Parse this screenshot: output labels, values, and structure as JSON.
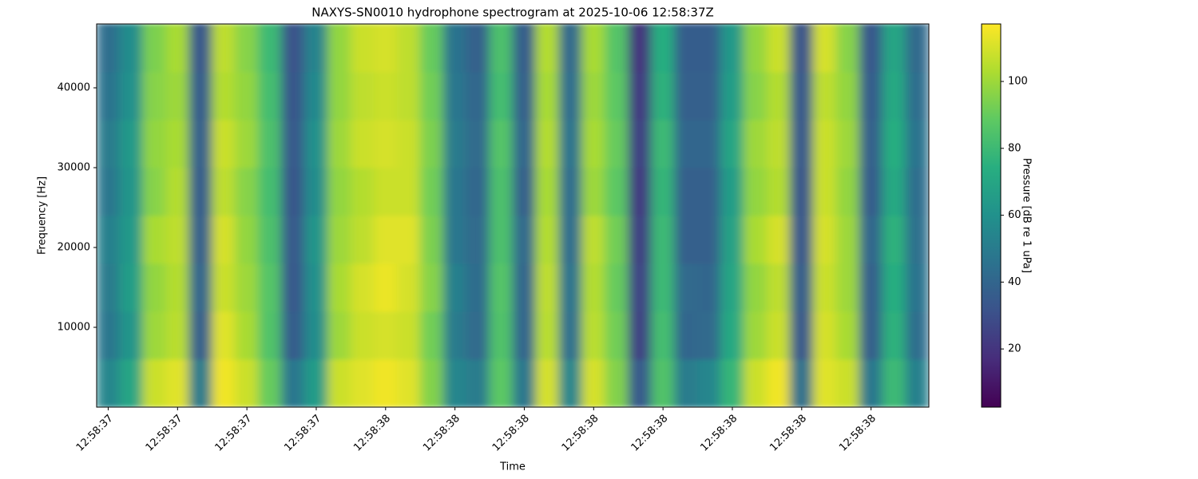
{
  "chart_data": {
    "type": "heatmap",
    "title": "NAXYS-SN0010 hydrophone spectrogram at 2025-10-06 12:58:37Z",
    "xlabel": "Time",
    "ylabel": "Frequency [Hz]",
    "categories": [
      "12:58:37",
      null,
      null,
      "12:58:37",
      null,
      null,
      "12:58:37",
      null,
      null,
      "12:58:37",
      null,
      null,
      "12:58:38",
      null,
      null,
      "12:58:38",
      null,
      null,
      "12:58:38",
      null,
      null,
      "12:58:38",
      null,
      null,
      "12:58:38",
      null,
      null,
      "12:58:38",
      null,
      null,
      "12:58:38",
      null,
      null,
      "12:58:38",
      null,
      null
    ],
    "yedges": [
      0,
      6000,
      12000,
      18000,
      24000,
      30000,
      36000,
      42000,
      48000
    ],
    "ylim": [
      0,
      48000
    ],
    "yticks": [
      10000,
      20000,
      30000,
      40000
    ],
    "colormap": "viridis",
    "colorbar": {
      "label": "Pressure [dB re 1 uPa]",
      "lim": [
        2.6,
        117.2
      ],
      "ticks": [
        20,
        40,
        60,
        80,
        100
      ]
    },
    "z": [
      [
        55,
        70,
        108,
        112,
        50,
        115,
        108,
        90,
        48,
        65,
        108,
        112,
        115,
        112,
        95,
        55,
        50,
        88,
        48,
        110,
        55,
        110,
        95,
        35,
        85,
        50,
        55,
        78,
        108,
        115,
        45,
        112,
        108,
        48,
        80,
        52
      ],
      [
        48,
        62,
        100,
        105,
        38,
        112,
        102,
        85,
        36,
        58,
        100,
        108,
        110,
        108,
        92,
        50,
        42,
        85,
        40,
        105,
        45,
        105,
        92,
        25,
        82,
        40,
        42,
        72,
        100,
        108,
        35,
        110,
        102,
        38,
        76,
        44
      ],
      [
        50,
        66,
        98,
        104,
        40,
        108,
        100,
        86,
        34,
        60,
        102,
        110,
        114,
        110,
        96,
        52,
        43,
        86,
        40,
        106,
        46,
        104,
        90,
        26,
        80,
        42,
        40,
        70,
        98,
        106,
        36,
        108,
        100,
        38,
        74,
        46
      ],
      [
        52,
        64,
        102,
        106,
        38,
        110,
        98,
        84,
        35,
        62,
        100,
        106,
        112,
        112,
        94,
        48,
        42,
        84,
        42,
        104,
        44,
        106,
        92,
        24,
        80,
        38,
        38,
        68,
        102,
        110,
        34,
        110,
        100,
        40,
        76,
        45
      ],
      [
        48,
        62,
        96,
        104,
        36,
        106,
        96,
        82,
        33,
        58,
        98,
        104,
        108,
        108,
        92,
        48,
        40,
        84,
        38,
        102,
        44,
        100,
        88,
        22,
        78,
        38,
        38,
        66,
        98,
        104,
        33,
        108,
        98,
        36,
        72,
        44
      ],
      [
        50,
        64,
        98,
        102,
        38,
        108,
        100,
        84,
        35,
        60,
        100,
        108,
        110,
        108,
        94,
        50,
        42,
        86,
        40,
        104,
        46,
        102,
        90,
        24,
        80,
        40,
        40,
        70,
        100,
        106,
        35,
        108,
        100,
        38,
        74,
        46
      ],
      [
        46,
        60,
        96,
        100,
        36,
        104,
        98,
        82,
        33,
        56,
        98,
        106,
        108,
        106,
        92,
        48,
        40,
        82,
        38,
        102,
        44,
        100,
        88,
        22,
        76,
        38,
        38,
        66,
        96,
        104,
        34,
        106,
        98,
        36,
        72,
        44
      ],
      [
        44,
        58,
        94,
        102,
        34,
        106,
        96,
        80,
        32,
        54,
        98,
        108,
        110,
        106,
        90,
        46,
        38,
        84,
        36,
        104,
        42,
        102,
        86,
        20,
        74,
        36,
        36,
        64,
        98,
        108,
        32,
        110,
        96,
        34,
        70,
        42
      ]
    ]
  }
}
